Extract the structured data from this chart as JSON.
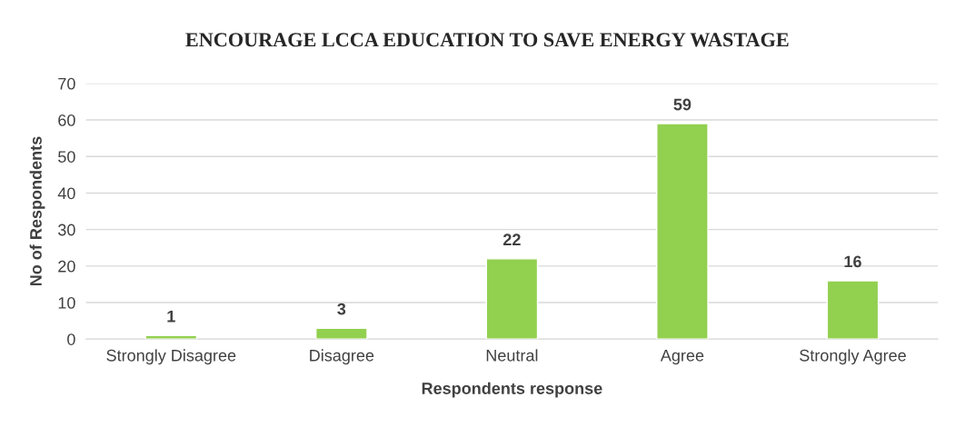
{
  "chart_data": {
    "type": "bar",
    "title": "ENCOURAGE LCCA EDUCATION TO SAVE ENERGY WASTAGE",
    "xlabel": "Respondents response",
    "ylabel": "No of Respondents",
    "categories": [
      "Strongly Disagree",
      "Disagree",
      "Neutral",
      "Agree",
      "Strongly Agree"
    ],
    "values": [
      1,
      3,
      22,
      59,
      16
    ],
    "color": "#92d050",
    "ylim": [
      0,
      70
    ],
    "yticks": [
      0,
      10,
      20,
      30,
      40,
      50,
      60,
      70
    ],
    "grid": "y",
    "data_labels": true
  }
}
